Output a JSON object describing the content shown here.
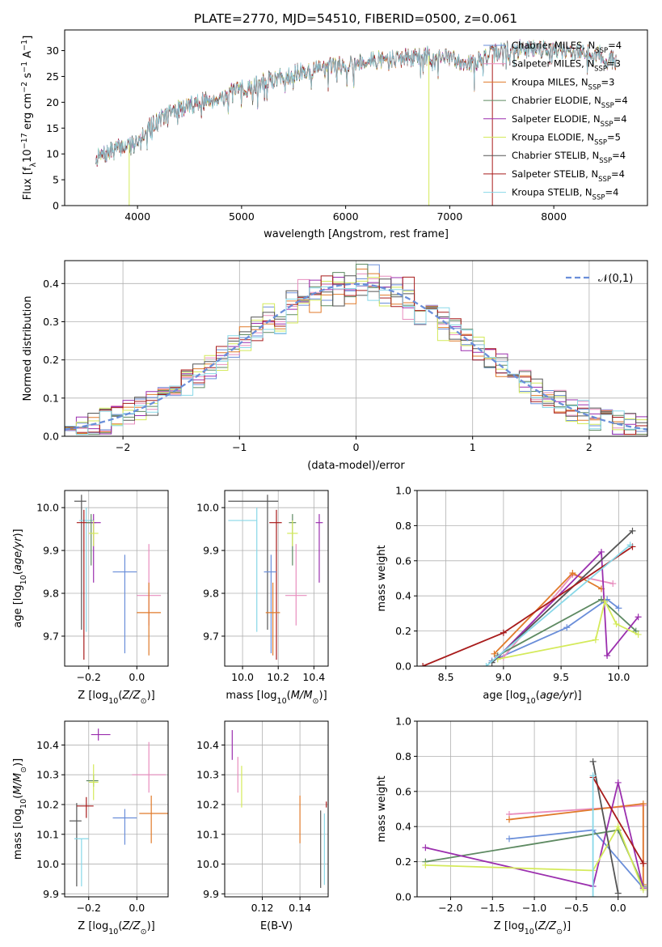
{
  "figure": {
    "title": "PLATE=2770, MJD=54510, FIBERID=0500, z=0.061"
  },
  "colors": {
    "Chabrier MILES": "#6a8ed9",
    "Salpeter MILES": "#e88dbe",
    "Kroupa MILES": "#e07a2a",
    "Chabrier ELODIE": "#5e8a62",
    "Salpeter ELODIE": "#9b2fae",
    "Kroupa ELODIE": "#d4ea5a",
    "Chabrier STELIB": "#555555",
    "Salpeter STELIB": "#a81b1b",
    "Kroupa STELIB": "#88d8e8"
  },
  "chart_data": [
    {
      "id": "spectrum",
      "type": "line",
      "xlabel": "wavelength [Angstrom, rest frame]",
      "ylabel": "Flux [f_λ 10^-17 erg cm^-2 s^-1 A^-1]",
      "xlim": [
        3300,
        8900
      ],
      "ylim": [
        0,
        34
      ],
      "xticks": [
        4000,
        5000,
        6000,
        7000,
        8000
      ],
      "yticks": [
        0,
        5,
        10,
        15,
        20,
        25,
        30
      ],
      "x_range": [
        3600,
        8600
      ],
      "continuum_x": [
        3600,
        3800,
        3950,
        4100,
        4300,
        4500,
        4800,
        5000,
        5300,
        5600,
        5900,
        6200,
        6500,
        6800,
        7000,
        7200,
        7500,
        7800,
        8100,
        8400,
        8600
      ],
      "continuum_y": [
        9,
        11,
        12,
        15,
        18,
        19.5,
        21,
        22.5,
        24.5,
        26,
        27,
        28,
        28.5,
        29,
        28.5,
        27.5,
        30,
        30.5,
        30,
        29.5,
        28
      ],
      "spikes": [
        {
          "series": "Kroupa ELODIE",
          "x": 3920
        },
        {
          "series": "Kroupa ELODIE",
          "x": 6800
        },
        {
          "series": "Salpeter STELIB",
          "x": 7410
        }
      ],
      "legend": [
        {
          "name": "Chabrier MILES",
          "nssp": "4"
        },
        {
          "name": "Salpeter MILES",
          "nssp": "3"
        },
        {
          "name": "Kroupa MILES",
          "nssp": "3"
        },
        {
          "name": "Chabrier ELODIE",
          "nssp": "4"
        },
        {
          "name": "Salpeter ELODIE",
          "nssp": "4"
        },
        {
          "name": "Kroupa ELODIE",
          "nssp": "5"
        },
        {
          "name": "Chabrier STELIB",
          "nssp": "4"
        },
        {
          "name": "Salpeter STELIB",
          "nssp": "4"
        },
        {
          "name": "Kroupa STELIB",
          "nssp": "4"
        }
      ],
      "legend_position": "right",
      "legend_suffix_label": "N",
      "legend_suffix_sub": "SSP"
    },
    {
      "id": "residuals",
      "type": "histogram",
      "xlabel": "(data-model)/error",
      "ylabel": "Normed distribution",
      "xlim": [
        -2.5,
        2.5
      ],
      "ylim": [
        0,
        0.46
      ],
      "xticks": [
        -2,
        -1,
        0,
        1,
        2
      ],
      "yticks": [
        0.0,
        0.1,
        0.2,
        0.3,
        0.4
      ],
      "bin_width": 0.1,
      "gaussian_label": "𝒩(0,1)",
      "gaussian_color": "#6a8ed9",
      "grid": true,
      "legend_position": "top-right"
    },
    {
      "id": "age-vs-Z",
      "type": "errorbar",
      "xlabel": "Z [log10(Z/Z⊙)]",
      "ylabel": "age [log10(age/yr)]",
      "xlim": [
        -0.3,
        0.13
      ],
      "ylim": [
        9.63,
        10.04
      ],
      "xticks": [
        -0.2,
        0.0
      ],
      "yticks": [
        9.7,
        9.8,
        9.9,
        10.0
      ],
      "grid": true,
      "points": [
        {
          "series": "Chabrier STELIB",
          "x": -0.23,
          "xerr": [
            0.03,
            0.02
          ],
          "y": 10.015,
          "yerr": [
            0.3,
            0.015
          ]
        },
        {
          "series": "Kroupa STELIB",
          "x": -0.21,
          "xerr": [
            0.03,
            0.03
          ],
          "y": 9.97,
          "yerr": [
            0.26,
            0.03
          ]
        },
        {
          "series": "Salpeter STELIB",
          "x": -0.22,
          "xerr": [
            0.03,
            0.03
          ],
          "y": 9.965,
          "yerr": [
            0.32,
            0.03
          ]
        },
        {
          "series": "Chabrier ELODIE",
          "x": -0.19,
          "xerr": [
            0.02,
            0.02
          ],
          "y": 9.965,
          "yerr": [
            0.1,
            0.02
          ]
        },
        {
          "series": "Salpeter ELODIE",
          "x": -0.18,
          "xerr": [
            0.01,
            0.03
          ],
          "y": 9.965,
          "yerr": [
            0.14,
            0.02
          ]
        },
        {
          "series": "Kroupa ELODIE",
          "x": -0.18,
          "xerr": [
            0.02,
            0.02
          ],
          "y": 9.94,
          "yerr": [
            0.03,
            0.03
          ]
        },
        {
          "series": "Chabrier MILES",
          "x": -0.05,
          "xerr": [
            0.05,
            0.05
          ],
          "y": 9.85,
          "yerr": [
            0.19,
            0.04
          ]
        },
        {
          "series": "Salpeter MILES",
          "x": 0.05,
          "xerr": [
            0.05,
            0.05
          ],
          "y": 9.795,
          "yerr": [
            0.07,
            0.12
          ]
        },
        {
          "series": "Kroupa MILES",
          "x": 0.05,
          "xerr": [
            0.05,
            0.05
          ],
          "y": 9.755,
          "yerr": [
            0.1,
            0.07
          ]
        }
      ]
    },
    {
      "id": "age-vs-mass",
      "type": "errorbar",
      "xlabel": "mass [log10(M/M⊙)]",
      "ylabel": "",
      "xlim": [
        9.9,
        10.48
      ],
      "ylim": [
        9.63,
        10.04
      ],
      "xticks": [
        10.0,
        10.2,
        10.4
      ],
      "yticks": [
        9.7,
        9.8,
        9.9,
        10.0
      ],
      "grid": true,
      "points": [
        {
          "series": "Chabrier STELIB",
          "x": 10.14,
          "xerr": [
            0.22,
            0.06
          ],
          "y": 10.015,
          "yerr": [
            0.3,
            0.015
          ]
        },
        {
          "series": "Kroupa STELIB",
          "x": 10.08,
          "xerr": [
            0.16,
            0.0
          ],
          "y": 9.97,
          "yerr": [
            0.26,
            0.03
          ]
        },
        {
          "series": "Salpeter STELIB",
          "x": 10.19,
          "xerr": [
            0.04,
            0.03
          ],
          "y": 9.965,
          "yerr": [
            0.32,
            0.03
          ]
        },
        {
          "series": "Chabrier ELODIE",
          "x": 10.28,
          "xerr": [
            0.02,
            0.02
          ],
          "y": 9.965,
          "yerr": [
            0.1,
            0.02
          ]
        },
        {
          "series": "Salpeter ELODIE",
          "x": 10.43,
          "xerr": [
            0.02,
            0.02
          ],
          "y": 9.965,
          "yerr": [
            0.14,
            0.02
          ]
        },
        {
          "series": "Kroupa ELODIE",
          "x": 10.28,
          "xerr": [
            0.03,
            0.03
          ],
          "y": 9.94,
          "yerr": [
            0.03,
            0.03
          ]
        },
        {
          "series": "Chabrier MILES",
          "x": 10.16,
          "xerr": [
            0.04,
            0.03
          ],
          "y": 9.85,
          "yerr": [
            0.19,
            0.04
          ]
        },
        {
          "series": "Salpeter MILES",
          "x": 10.3,
          "xerr": [
            0.06,
            0.06
          ],
          "y": 9.795,
          "yerr": [
            0.07,
            0.12
          ]
        },
        {
          "series": "Kroupa MILES",
          "x": 10.17,
          "xerr": [
            0.04,
            0.04
          ],
          "y": 9.755,
          "yerr": [
            0.1,
            0.07
          ]
        }
      ]
    },
    {
      "id": "mass-weight-vs-age",
      "type": "line",
      "xlabel": "age [log10(age/yr)]",
      "ylabel": "mass weight",
      "xlim": [
        8.25,
        10.25
      ],
      "ylim": [
        0,
        1
      ],
      "xticks": [
        8.5,
        9.0,
        9.5,
        10.0
      ],
      "yticks": [
        0.0,
        0.2,
        0.4,
        0.6,
        0.8,
        1.0
      ],
      "grid": true,
      "series": [
        {
          "name": "Chabrier MILES",
          "x": [
            8.9,
            9.55,
            9.9,
            10.0
          ],
          "y": [
            0.03,
            0.22,
            0.38,
            0.33
          ]
        },
        {
          "name": "Salpeter MILES",
          "x": [
            9.0,
            9.6,
            9.95
          ],
          "y": [
            0.05,
            0.52,
            0.47
          ]
        },
        {
          "name": "Kroupa MILES",
          "x": [
            8.92,
            9.6,
            9.85
          ],
          "y": [
            0.07,
            0.53,
            0.44
          ]
        },
        {
          "name": "Chabrier ELODIE",
          "x": [
            8.95,
            9.85,
            10.15
          ],
          "y": [
            0.06,
            0.38,
            0.2
          ]
        },
        {
          "name": "Salpeter ELODIE",
          "x": [
            8.95,
            9.85,
            9.9,
            10.17
          ],
          "y": [
            0.05,
            0.65,
            0.06,
            0.28
          ]
        },
        {
          "name": "Kroupa ELODIE",
          "x": [
            8.95,
            9.8,
            9.88,
            9.98,
            10.17
          ],
          "y": [
            0.04,
            0.15,
            0.37,
            0.24,
            0.18
          ]
        },
        {
          "name": "Chabrier STELIB",
          "x": [
            8.9,
            10.12
          ],
          "y": [
            0.02,
            0.77
          ]
        },
        {
          "name": "Salpeter STELIB",
          "x": [
            8.3,
            9.0,
            10.12
          ],
          "y": [
            0.0,
            0.19,
            0.68
          ]
        },
        {
          "name": "Kroupa STELIB",
          "x": [
            8.85,
            10.1
          ],
          "y": [
            0.0,
            0.69
          ]
        }
      ]
    },
    {
      "id": "mass-vs-Z",
      "type": "errorbar",
      "xlabel": "Z [log10(Z/Z⊙)]",
      "ylabel": "mass [log10(M/M⊙)]",
      "xlim": [
        -0.3,
        0.13
      ],
      "ylim": [
        9.89,
        10.48
      ],
      "xticks": [
        -0.2,
        0.0
      ],
      "yticks": [
        9.9,
        10.0,
        10.1,
        10.2,
        10.3,
        10.4
      ],
      "grid": true,
      "points": [
        {
          "series": "Chabrier STELIB",
          "x": -0.25,
          "xerr": [
            0.03,
            0.02
          ],
          "y": 10.145,
          "yerr": [
            0.22,
            0.06
          ]
        },
        {
          "series": "Kroupa STELIB",
          "x": -0.23,
          "xerr": [
            0.03,
            0.03
          ],
          "y": 10.085,
          "yerr": [
            0.16,
            0.0
          ]
        },
        {
          "series": "Salpeter STELIB",
          "x": -0.21,
          "xerr": [
            0.04,
            0.03
          ],
          "y": 10.195,
          "yerr": [
            0.04,
            0.03
          ]
        },
        {
          "series": "Chabrier ELODIE",
          "x": -0.18,
          "xerr": [
            0.03,
            0.02
          ],
          "y": 10.28,
          "yerr": [
            0.02,
            0.02
          ]
        },
        {
          "series": "Salpeter ELODIE",
          "x": -0.16,
          "xerr": [
            0.03,
            0.05
          ],
          "y": 10.435,
          "yerr": [
            0.02,
            0.02
          ]
        },
        {
          "series": "Kroupa ELODIE",
          "x": -0.18,
          "xerr": [
            0.02,
            0.02
          ],
          "y": 10.275,
          "yerr": [
            0.06,
            0.06
          ]
        },
        {
          "series": "Chabrier MILES",
          "x": -0.05,
          "xerr": [
            0.05,
            0.05
          ],
          "y": 10.155,
          "yerr": [
            0.09,
            0.03
          ]
        },
        {
          "series": "Salpeter MILES",
          "x": 0.05,
          "xerr": [
            0.07,
            0.07
          ],
          "y": 10.3,
          "yerr": [
            0.06,
            0.11
          ]
        },
        {
          "series": "Kroupa MILES",
          "x": 0.06,
          "xerr": [
            0.05,
            0.07
          ],
          "y": 10.17,
          "yerr": [
            0.1,
            0.06
          ]
        }
      ]
    },
    {
      "id": "mass-vs-EBV",
      "type": "errorbar",
      "xlabel": "E(B-V)",
      "ylabel": "",
      "xlim": [
        0.1,
        0.155
      ],
      "ylim": [
        9.89,
        10.48
      ],
      "xticks": [
        0.12,
        0.14
      ],
      "yticks": [
        9.9,
        10.0,
        10.1,
        10.2,
        10.3,
        10.4
      ],
      "grid": true,
      "points": [
        {
          "series": "Salpeter ELODIE",
          "x": 0.104,
          "xerr": [
            0,
            0
          ],
          "y": 10.4,
          "yerr": [
            0.05,
            0.05
          ]
        },
        {
          "series": "Salpeter MILES",
          "x": 0.107,
          "xerr": [
            0,
            0
          ],
          "y": 10.3,
          "yerr": [
            0.06,
            0.06
          ]
        },
        {
          "series": "Kroupa ELODIE",
          "x": 0.109,
          "xerr": [
            0,
            0
          ],
          "y": 10.26,
          "yerr": [
            0.07,
            0.07
          ]
        },
        {
          "series": "Kroupa MILES",
          "x": 0.14,
          "xerr": [
            0,
            0
          ],
          "y": 10.15,
          "yerr": [
            0.08,
            0.08
          ]
        },
        {
          "series": "Chabrier STELIB",
          "x": 0.151,
          "xerr": [
            0,
            0
          ],
          "y": 10.05,
          "yerr": [
            0.13,
            0.13
          ]
        },
        {
          "series": "Salpeter STELIB",
          "x": 0.154,
          "xerr": [
            0,
            0
          ],
          "y": 10.2,
          "yerr": [
            0.01,
            0.01
          ]
        },
        {
          "series": "Kroupa STELIB",
          "x": 0.153,
          "xerr": [
            0,
            0
          ],
          "y": 10.05,
          "yerr": [
            0.12,
            0.12
          ]
        }
      ]
    },
    {
      "id": "mass-weight-vs-Z",
      "type": "line",
      "xlabel": "Z [log10(Z/Z⊙)]",
      "ylabel": "mass weight",
      "xlim": [
        -2.4,
        0.35
      ],
      "ylim": [
        0,
        1
      ],
      "xticks": [
        -2.0,
        -1.5,
        -1.0,
        -0.5,
        0.0
      ],
      "yticks": [
        0.0,
        0.2,
        0.4,
        0.6,
        0.8,
        1.0
      ],
      "grid": true,
      "series": [
        {
          "name": "Chabrier MILES",
          "x": [
            -1.3,
            -0.3,
            0.3
          ],
          "y": [
            0.33,
            0.38,
            0.05
          ]
        },
        {
          "name": "Salpeter MILES",
          "x": [
            -1.3,
            0.3,
            0.3
          ],
          "y": [
            0.47,
            0.52,
            0.05
          ]
        },
        {
          "name": "Kroupa MILES",
          "x": [
            -1.3,
            0.3,
            0.3
          ],
          "y": [
            0.44,
            0.53,
            0.07
          ]
        },
        {
          "name": "Chabrier ELODIE",
          "x": [
            -2.3,
            0.0,
            0.3
          ],
          "y": [
            0.2,
            0.38,
            0.06
          ]
        },
        {
          "name": "Salpeter ELODIE",
          "x": [
            -2.3,
            -0.3,
            0.0,
            0.3
          ],
          "y": [
            0.28,
            0.06,
            0.65,
            0.05
          ]
        },
        {
          "name": "Kroupa ELODIE",
          "x": [
            -2.3,
            -0.3,
            0.0,
            0.3
          ],
          "y": [
            0.18,
            0.15,
            0.4,
            0.04
          ]
        },
        {
          "name": "Chabrier STELIB",
          "x": [
            -0.3,
            0.0
          ],
          "y": [
            0.77,
            0.02
          ]
        },
        {
          "name": "Salpeter STELIB",
          "x": [
            -0.3,
            0.3
          ],
          "y": [
            0.68,
            0.19
          ]
        },
        {
          "name": "Kroupa STELIB",
          "x": [
            -0.3,
            -0.3
          ],
          "y": [
            0.69,
            0.0
          ]
        }
      ]
    }
  ]
}
